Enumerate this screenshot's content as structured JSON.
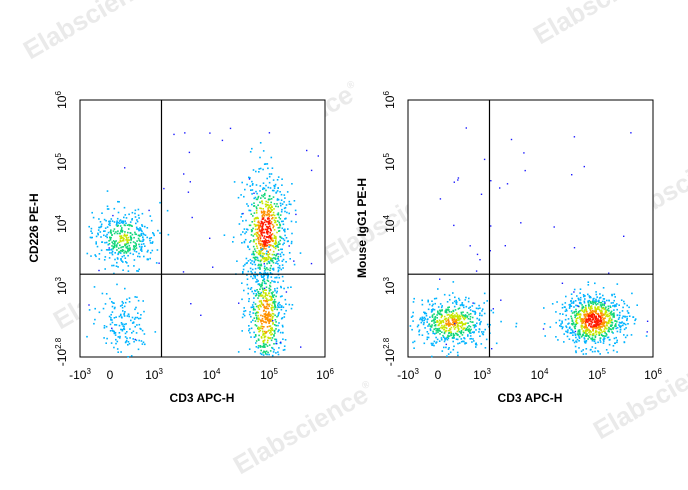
{
  "watermark": {
    "text": "Elabscience",
    "mark": "®"
  },
  "chart_data": [
    {
      "type": "scatter",
      "subtype": "flow-cytometry-density-dot-plot",
      "xlabel": "CD3 APC-H",
      "ylabel": "CD226 PE-H",
      "x_scale": "biexponential",
      "y_scale": "biexponential",
      "x_ticks": [
        {
          "base": "-10",
          "exp": "3",
          "value": -1000
        },
        {
          "base": "0",
          "exp": "",
          "value": 0
        },
        {
          "base": "10",
          "exp": "3",
          "value": 1000
        },
        {
          "base": "10",
          "exp": "4",
          "value": 10000
        },
        {
          "base": "10",
          "exp": "5",
          "value": 100000
        },
        {
          "base": "10",
          "exp": "6",
          "value": 1000000
        }
      ],
      "y_ticks": [
        {
          "base": "-10",
          "exp": "2.8",
          "value": -631
        },
        {
          "base": "10",
          "exp": "3",
          "value": 1000
        },
        {
          "base": "10",
          "exp": "4",
          "value": 10000
        },
        {
          "base": "10",
          "exp": "5",
          "value": 100000
        },
        {
          "base": "10",
          "exp": "6",
          "value": 1000000
        }
      ],
      "gate": {
        "x": 1350,
        "y": 1550
      },
      "populations": [
        {
          "quadrant": "upper-left",
          "cx": 300,
          "cy": 6000,
          "count": 380,
          "density": 0.55
        },
        {
          "quadrant": "lower-left",
          "cx": 300,
          "cy": 150,
          "count": 150,
          "density": 0.3
        },
        {
          "quadrant": "upper-right",
          "cx": 85000,
          "cy": 8000,
          "count": 700,
          "density": 1.0
        },
        {
          "quadrant": "lower-right",
          "cx": 85000,
          "cy": 300,
          "count": 500,
          "density": 0.85
        }
      ],
      "grid": false,
      "legend": "none"
    },
    {
      "type": "scatter",
      "subtype": "flow-cytometry-density-dot-plot",
      "xlabel": "CD3 APC-H",
      "ylabel": "Mouse IgG1 PE-H",
      "x_scale": "biexponential",
      "y_scale": "biexponential",
      "x_ticks": [
        {
          "base": "-10",
          "exp": "3",
          "value": -1000
        },
        {
          "base": "0",
          "exp": "",
          "value": 0
        },
        {
          "base": "10",
          "exp": "3",
          "value": 1000
        },
        {
          "base": "10",
          "exp": "4",
          "value": 10000
        },
        {
          "base": "10",
          "exp": "5",
          "value": 100000
        },
        {
          "base": "10",
          "exp": "6",
          "value": 1000000
        }
      ],
      "y_ticks": [
        {
          "base": "-10",
          "exp": "2.8",
          "value": -631
        },
        {
          "base": "10",
          "exp": "3",
          "value": 1000
        },
        {
          "base": "10",
          "exp": "4",
          "value": 10000
        },
        {
          "base": "10",
          "exp": "5",
          "value": 100000
        },
        {
          "base": "10",
          "exp": "6",
          "value": 1000000
        }
      ],
      "gate": {
        "x": 1350,
        "y": 1550
      },
      "populations": [
        {
          "quadrant": "lower-left",
          "cx": 300,
          "cy": 150,
          "count": 550,
          "density": 0.75
        },
        {
          "quadrant": "lower-right",
          "cx": 85000,
          "cy": 200,
          "count": 800,
          "density": 1.0
        }
      ],
      "grid": false,
      "legend": "none"
    }
  ]
}
